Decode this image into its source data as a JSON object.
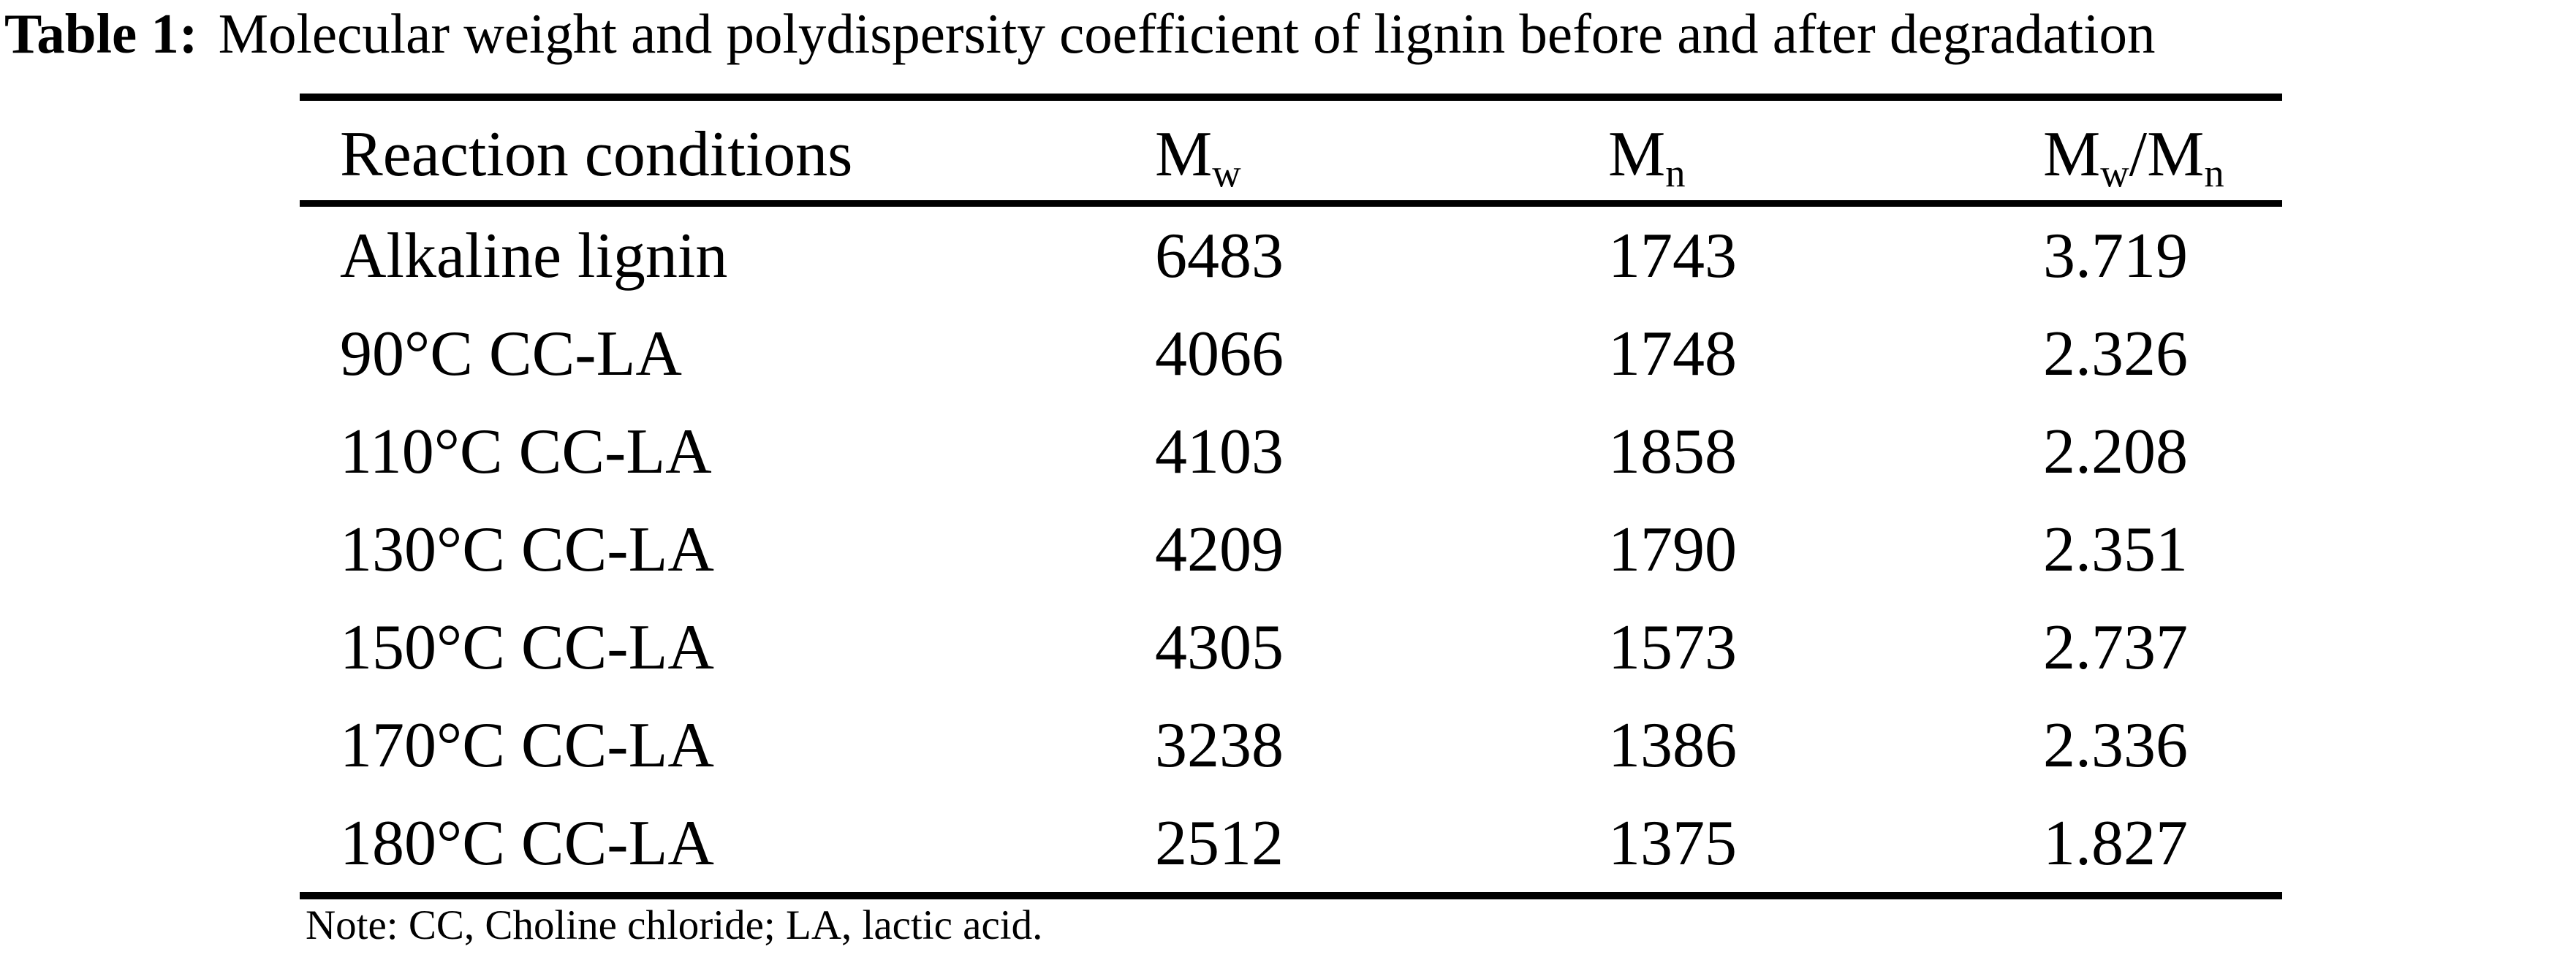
{
  "caption": {
    "label": "Table 1:",
    "text": "Molecular weight and polydispersity coefficient of lignin before and after degradation"
  },
  "table": {
    "headers": [
      {
        "parts": [
          {
            "t": "Reaction conditions",
            "sub": false
          }
        ]
      },
      {
        "parts": [
          {
            "t": "M",
            "sub": false
          },
          {
            "t": "w",
            "sub": true
          }
        ]
      },
      {
        "parts": [
          {
            "t": "M",
            "sub": false
          },
          {
            "t": "n",
            "sub": true
          }
        ]
      },
      {
        "parts": [
          {
            "t": "M",
            "sub": false
          },
          {
            "t": "w",
            "sub": true
          },
          {
            "t": "/M",
            "sub": false
          },
          {
            "t": "n",
            "sub": true
          }
        ]
      }
    ],
    "rows": [
      {
        "condition": "Alkaline lignin",
        "mw": "6483",
        "mn": "1743",
        "pdi": "3.719"
      },
      {
        "condition": "90°C CC-LA",
        "mw": "4066",
        "mn": "1748",
        "pdi": "2.326"
      },
      {
        "condition": "110°C CC-LA",
        "mw": "4103",
        "mn": "1858",
        "pdi": "2.208"
      },
      {
        "condition": "130°C CC-LA",
        "mw": "4209",
        "mn": "1790",
        "pdi": "2.351"
      },
      {
        "condition": "150°C CC-LA",
        "mw": "4305",
        "mn": "1573",
        "pdi": "2.737"
      },
      {
        "condition": "170°C CC-LA",
        "mw": "3238",
        "mn": "1386",
        "pdi": "2.336"
      },
      {
        "condition": "180°C CC-LA",
        "mw": "2512",
        "mn": "1375",
        "pdi": "1.827"
      }
    ]
  },
  "note": "Note: CC, Choline chloride; LA, lactic acid.",
  "colors": {
    "text": "#000000",
    "background": "#ffffff",
    "rule": "#000000"
  }
}
